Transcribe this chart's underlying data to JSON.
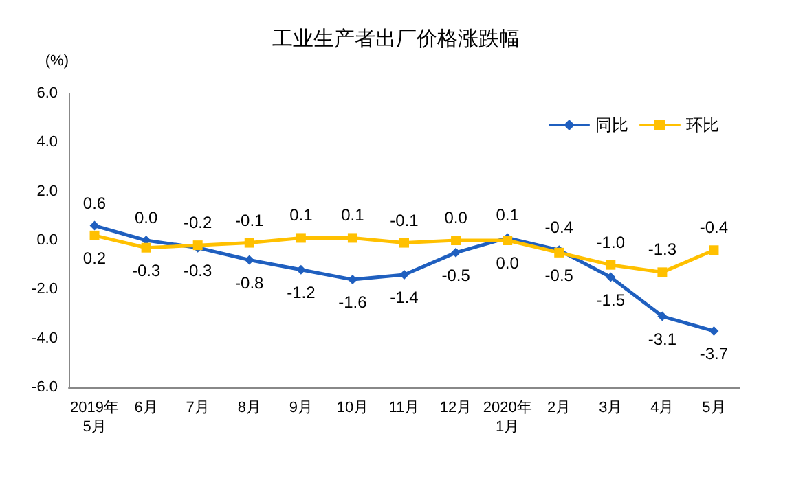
{
  "chart_data": {
    "type": "line",
    "title": "工业生产者出厂价格涨跌幅",
    "ylabel": "(%)",
    "categories": [
      "2019年\n5月",
      "6月",
      "7月",
      "8月",
      "9月",
      "10月",
      "11月",
      "12月",
      "2020年\n1月",
      "2月",
      "3月",
      "4月",
      "5月"
    ],
    "series": [
      {
        "name": "同比",
        "color": "#1f5fbf",
        "marker": "diamond",
        "values": [
          0.6,
          0.0,
          -0.3,
          -0.8,
          -1.2,
          -1.6,
          -1.4,
          -0.5,
          0.1,
          -0.4,
          -1.5,
          -3.1,
          -3.7
        ],
        "value_labels": [
          "0.6",
          "0.0",
          "-0.3",
          "-0.8",
          "-1.2",
          "-1.6",
          "-1.4",
          "-0.5",
          "0.1",
          "-0.4",
          "-1.5",
          "-3.1",
          "-3.7"
        ]
      },
      {
        "name": "环比",
        "color": "#ffc000",
        "marker": "square",
        "values": [
          0.2,
          -0.3,
          -0.2,
          -0.1,
          0.1,
          0.1,
          -0.1,
          0.0,
          0.0,
          -0.5,
          -1.0,
          -1.3,
          -0.4
        ],
        "value_labels": [
          "0.2",
          "-0.3",
          "-0.2",
          "-0.1",
          "0.1",
          "0.1",
          "-0.1",
          "0.0",
          "0.0",
          "-0.5",
          "-1.0",
          "-1.3",
          "-0.4"
        ]
      }
    ],
    "ylim": [
      -6,
      6
    ],
    "yticks": [
      {
        "value": -6,
        "label": "-6.0"
      },
      {
        "value": -4,
        "label": "-4.0"
      },
      {
        "value": -2,
        "label": "-2.0"
      },
      {
        "value": 0,
        "label": "0.0"
      },
      {
        "value": 2,
        "label": "2.0"
      },
      {
        "value": 4,
        "label": "4.0"
      },
      {
        "value": 6,
        "label": "6.0"
      }
    ],
    "legend": "top right",
    "grid": false,
    "line_style": "solid"
  }
}
